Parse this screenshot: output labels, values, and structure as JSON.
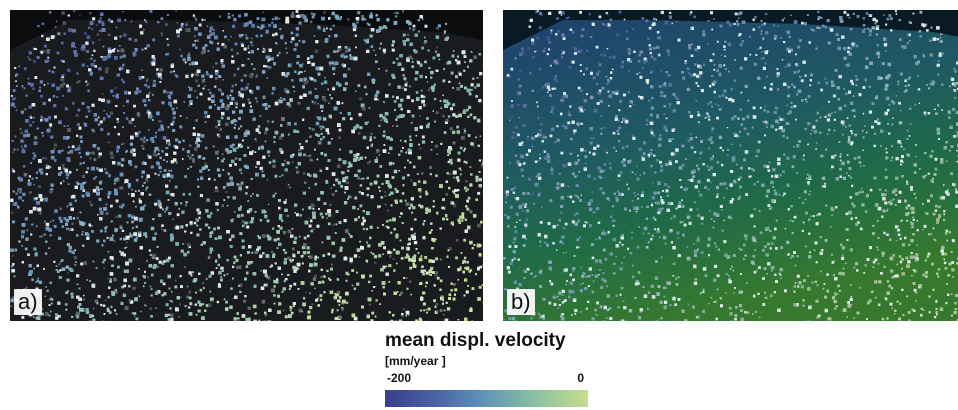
{
  "panels": [
    {
      "id": "a",
      "label": "a)"
    },
    {
      "id": "b",
      "label": "b)"
    }
  ],
  "legend": {
    "title": "mean displ. velocity",
    "unit": "[mm/year ]",
    "min_label": "-200",
    "max_label": "0",
    "colors": [
      "#3b3f8c",
      "#4a63a5",
      "#5f93b6",
      "#86bda4",
      "#c6dd8a"
    ]
  }
}
